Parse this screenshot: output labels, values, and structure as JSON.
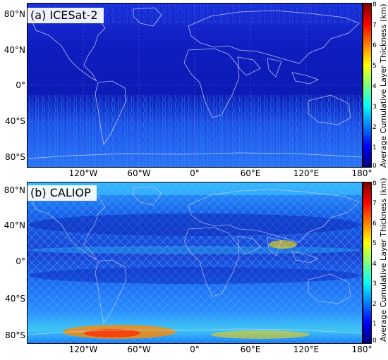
{
  "panels": [
    {
      "label": "(a) ICESat-2",
      "lat_ticks": [
        "80°N",
        "40°N",
        "0°",
        "40°S",
        "80°S"
      ],
      "lon_ticks": [
        "120°W",
        "60°W",
        "0°",
        "60°E",
        "120°E",
        "180°"
      ],
      "colorbar_title": "Average Cumulative Layer Thickness (km)",
      "colorbar_ticks": [
        "8",
        "7",
        "6",
        "5",
        "4",
        "3",
        "2",
        "1",
        "0"
      ]
    },
    {
      "label": "(b) CALIOP",
      "lat_ticks": [
        "80°N",
        "40°N",
        "0°",
        "40°S",
        "80°S"
      ],
      "lon_ticks": [
        "120°W",
        "60°W",
        "0°",
        "60°E",
        "120°E",
        "180°"
      ],
      "colorbar_title": "Average Cumulative Layer Thickness (km)",
      "colorbar_ticks": [
        "8",
        "7",
        "6",
        "5",
        "4",
        "3",
        "2",
        "1",
        "0"
      ]
    }
  ],
  "colorscale": [
    "#00007f",
    "#0000ff",
    "#007fff",
    "#00ffff",
    "#7fff7f",
    "#ffff00",
    "#ff7f00",
    "#ff0000",
    "#7f0000"
  ],
  "colors": {
    "coastline": "#d8d8ff",
    "grid": "#8a8aff",
    "ocean_a": "#0d1fc8",
    "ocean_b": "#1a5af0"
  }
}
